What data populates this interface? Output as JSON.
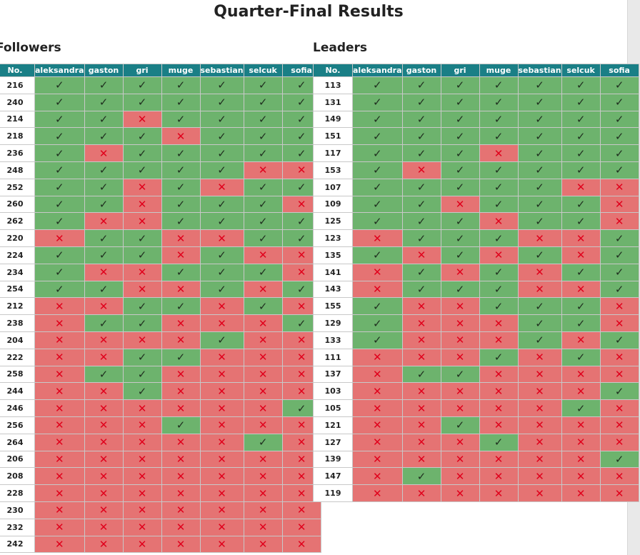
{
  "page": {
    "title": "Quarter-Final Results"
  },
  "symbols": {
    "pass": "✓",
    "fail": "✕"
  },
  "colors": {
    "header_bg": "#1a7f86",
    "pass_bg": "#6db36d",
    "fail_bg": "#e57373",
    "fail_mark": "#e0001b"
  },
  "followers": {
    "title": "Followers",
    "columns": [
      "No.",
      "aleksandra",
      "gaston",
      "gri",
      "muge",
      "sebastian",
      "selcuk",
      "sofia"
    ],
    "rows": [
      {
        "no": "216",
        "marks": [
          1,
          1,
          1,
          1,
          1,
          1,
          1
        ]
      },
      {
        "no": "240",
        "marks": [
          1,
          1,
          1,
          1,
          1,
          1,
          1
        ]
      },
      {
        "no": "214",
        "marks": [
          1,
          1,
          0,
          1,
          1,
          1,
          1
        ]
      },
      {
        "no": "218",
        "marks": [
          1,
          1,
          1,
          0,
          1,
          1,
          1
        ]
      },
      {
        "no": "236",
        "marks": [
          1,
          0,
          1,
          1,
          1,
          1,
          1
        ]
      },
      {
        "no": "248",
        "marks": [
          1,
          1,
          1,
          1,
          1,
          0,
          0
        ]
      },
      {
        "no": "252",
        "marks": [
          1,
          1,
          0,
          1,
          0,
          1,
          1
        ]
      },
      {
        "no": "260",
        "marks": [
          1,
          1,
          0,
          1,
          1,
          1,
          0
        ]
      },
      {
        "no": "262",
        "marks": [
          1,
          0,
          0,
          1,
          1,
          1,
          1
        ]
      },
      {
        "no": "220",
        "marks": [
          0,
          1,
          1,
          0,
          0,
          1,
          1
        ]
      },
      {
        "no": "224",
        "marks": [
          1,
          1,
          1,
          0,
          1,
          0,
          0
        ]
      },
      {
        "no": "234",
        "marks": [
          1,
          0,
          0,
          1,
          1,
          1,
          0
        ]
      },
      {
        "no": "254",
        "marks": [
          1,
          1,
          0,
          0,
          1,
          0,
          1
        ]
      },
      {
        "no": "212",
        "marks": [
          0,
          0,
          1,
          1,
          0,
          1,
          0
        ]
      },
      {
        "no": "238",
        "marks": [
          0,
          1,
          1,
          0,
          0,
          0,
          1
        ]
      },
      {
        "no": "204",
        "marks": [
          0,
          0,
          0,
          0,
          1,
          0,
          0
        ]
      },
      {
        "no": "222",
        "marks": [
          0,
          0,
          1,
          1,
          0,
          0,
          0
        ]
      },
      {
        "no": "258",
        "marks": [
          0,
          1,
          1,
          0,
          0,
          0,
          0
        ]
      },
      {
        "no": "244",
        "marks": [
          0,
          0,
          1,
          0,
          0,
          0,
          0
        ]
      },
      {
        "no": "246",
        "marks": [
          0,
          0,
          0,
          0,
          0,
          0,
          1
        ]
      },
      {
        "no": "256",
        "marks": [
          0,
          0,
          0,
          1,
          0,
          0,
          0
        ]
      },
      {
        "no": "264",
        "marks": [
          0,
          0,
          0,
          0,
          0,
          1,
          0
        ]
      },
      {
        "no": "206",
        "marks": [
          0,
          0,
          0,
          0,
          0,
          0,
          0
        ]
      },
      {
        "no": "208",
        "marks": [
          0,
          0,
          0,
          0,
          0,
          0,
          0
        ]
      },
      {
        "no": "228",
        "marks": [
          0,
          0,
          0,
          0,
          0,
          0,
          0
        ]
      },
      {
        "no": "230",
        "marks": [
          0,
          0,
          0,
          0,
          0,
          0,
          0
        ]
      },
      {
        "no": "232",
        "marks": [
          0,
          0,
          0,
          0,
          0,
          0,
          0
        ]
      },
      {
        "no": "242",
        "marks": [
          0,
          0,
          0,
          0,
          0,
          0,
          0
        ]
      }
    ]
  },
  "leaders": {
    "title": "Leaders",
    "columns": [
      "No.",
      "aleksandra",
      "gaston",
      "gri",
      "muge",
      "sebastian",
      "selcuk",
      "sofia"
    ],
    "rows": [
      {
        "no": "113",
        "marks": [
          1,
          1,
          1,
          1,
          1,
          1,
          1
        ]
      },
      {
        "no": "131",
        "marks": [
          1,
          1,
          1,
          1,
          1,
          1,
          1
        ]
      },
      {
        "no": "149",
        "marks": [
          1,
          1,
          1,
          1,
          1,
          1,
          1
        ]
      },
      {
        "no": "151",
        "marks": [
          1,
          1,
          1,
          1,
          1,
          1,
          1
        ]
      },
      {
        "no": "117",
        "marks": [
          1,
          1,
          1,
          0,
          1,
          1,
          1
        ]
      },
      {
        "no": "153",
        "marks": [
          1,
          0,
          1,
          1,
          1,
          1,
          1
        ]
      },
      {
        "no": "107",
        "marks": [
          1,
          1,
          1,
          1,
          1,
          0,
          0
        ]
      },
      {
        "no": "109",
        "marks": [
          1,
          1,
          0,
          1,
          1,
          1,
          0
        ]
      },
      {
        "no": "125",
        "marks": [
          1,
          1,
          1,
          0,
          1,
          1,
          0
        ]
      },
      {
        "no": "123",
        "marks": [
          0,
          1,
          1,
          1,
          0,
          0,
          1
        ]
      },
      {
        "no": "135",
        "marks": [
          1,
          0,
          1,
          0,
          1,
          0,
          1
        ]
      },
      {
        "no": "141",
        "marks": [
          0,
          1,
          0,
          1,
          0,
          1,
          1
        ]
      },
      {
        "no": "143",
        "marks": [
          0,
          1,
          1,
          1,
          0,
          0,
          1
        ]
      },
      {
        "no": "155",
        "marks": [
          1,
          0,
          0,
          1,
          1,
          1,
          0
        ]
      },
      {
        "no": "129",
        "marks": [
          1,
          0,
          0,
          0,
          1,
          1,
          0
        ]
      },
      {
        "no": "133",
        "marks": [
          1,
          0,
          0,
          0,
          1,
          0,
          1
        ]
      },
      {
        "no": "111",
        "marks": [
          0,
          0,
          0,
          1,
          0,
          1,
          0
        ]
      },
      {
        "no": "137",
        "marks": [
          0,
          1,
          1,
          0,
          0,
          0,
          0
        ]
      },
      {
        "no": "103",
        "marks": [
          0,
          0,
          0,
          0,
          0,
          0,
          1
        ]
      },
      {
        "no": "105",
        "marks": [
          0,
          0,
          0,
          0,
          0,
          1,
          0
        ]
      },
      {
        "no": "121",
        "marks": [
          0,
          0,
          1,
          0,
          0,
          0,
          0
        ]
      },
      {
        "no": "127",
        "marks": [
          0,
          0,
          0,
          1,
          0,
          0,
          0
        ]
      },
      {
        "no": "139",
        "marks": [
          0,
          0,
          0,
          0,
          0,
          0,
          1
        ]
      },
      {
        "no": "147",
        "marks": [
          0,
          1,
          0,
          0,
          0,
          0,
          0
        ]
      },
      {
        "no": "119",
        "marks": [
          0,
          0,
          0,
          0,
          0,
          0,
          0
        ]
      }
    ]
  }
}
